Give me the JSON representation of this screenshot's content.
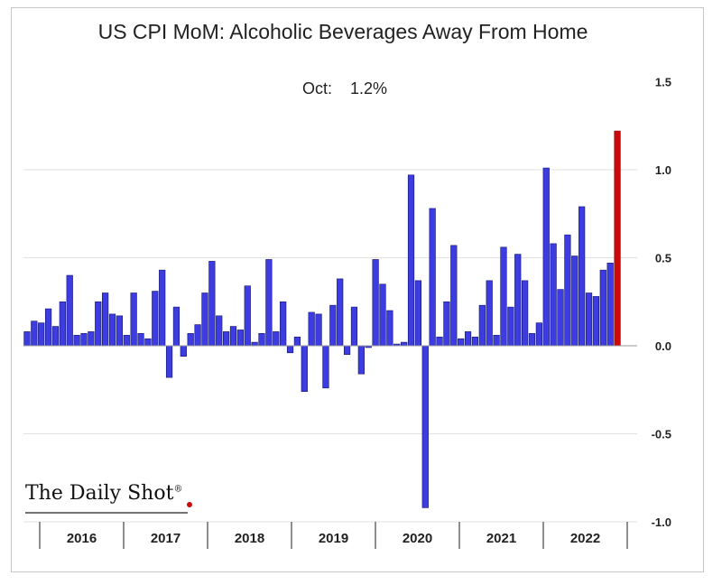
{
  "chart_data": {
    "type": "bar",
    "title": "US CPI MoM: Alcoholic Beverages Away From Home",
    "annotation": "Oct:    1.2%",
    "xlabel": "",
    "ylabel": "",
    "ylim": [
      -1.0,
      1.5
    ],
    "yticks": [
      1.5,
      1.0,
      0.5,
      0.0,
      -0.5,
      -1.0
    ],
    "ytick_labels": [
      "1.5",
      "1.0",
      "0.5",
      "0.0",
      "-0.5",
      "-1.0"
    ],
    "years": [
      "2016",
      "2017",
      "2018",
      "2019",
      "2020",
      "2021",
      "2022"
    ],
    "grid": true,
    "y_axis_side": "right",
    "colors": {
      "bar": "#3c3ce0",
      "bar_edge": "#14146e",
      "highlight": "#cc0a0a",
      "grid": "#e2e2e2",
      "text": "#222222"
    },
    "series": [
      {
        "values": [
          0.08,
          0.14,
          0.13,
          0.21,
          0.11,
          0.25,
          0.4,
          0.06,
          0.07,
          0.08,
          0.25,
          0.3,
          0.18,
          0.17,
          0.06,
          0.3,
          0.07,
          0.04,
          0.31,
          0.43,
          -0.18,
          0.22,
          -0.06,
          0.07,
          0.12,
          0.3,
          0.48,
          0.17,
          0.08,
          0.11,
          0.09,
          0.34,
          0.02,
          0.07,
          0.49,
          0.08,
          0.25,
          -0.04,
          0.05,
          -0.26,
          0.19,
          0.18,
          -0.24,
          0.23,
          0.38,
          -0.05,
          0.22,
          -0.16,
          -0.01,
          0.49,
          0.35,
          0.2,
          0.01,
          0.02,
          0.97,
          0.37,
          -0.92,
          0.78,
          0.05,
          0.25,
          0.57,
          0.04,
          0.08,
          0.05,
          0.23,
          0.37,
          0.06,
          0.56,
          0.22,
          0.52,
          0.37,
          0.07,
          0.13,
          1.01,
          0.58,
          0.32,
          0.63,
          0.51,
          0.79,
          0.3,
          0.28,
          0.43,
          0.47,
          1.22
        ]
      }
    ]
  },
  "logo": {
    "text": "The Daily Shot",
    "mark": "®",
    "dot_color": "#cc0a0a"
  }
}
